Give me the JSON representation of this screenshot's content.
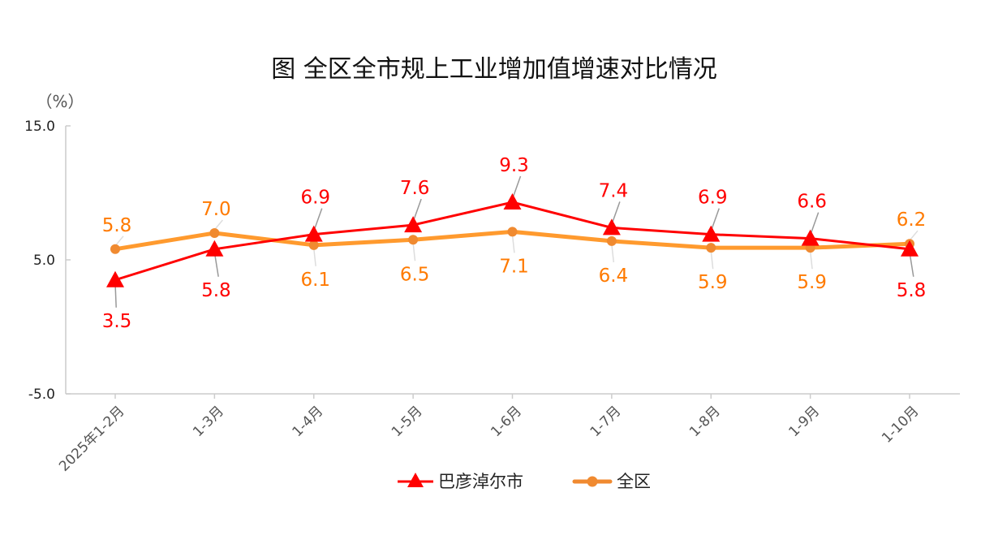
{
  "chart_data": {
    "type": "line",
    "title": "图 全区全市规上工业增加值增速对比情况",
    "ylabel": "（%）",
    "xlabel": "",
    "ylim": [
      -5,
      15
    ],
    "yticks": [
      "15.0",
      "5.0",
      "-5.0"
    ],
    "ytick_values": [
      15,
      5,
      -5
    ],
    "categories": [
      "2025年1-2月",
      "1-3月",
      "1-4月",
      "1-5月",
      "1-6月",
      "1-7月",
      "1-8月",
      "1-9月",
      "1-10月"
    ],
    "legend_position": "bottom",
    "series": [
      {
        "name": "巴彦淖尔市",
        "color": "#ff0000",
        "marker": "triangle",
        "values": [
          3.5,
          5.8,
          6.9,
          7.6,
          9.3,
          7.4,
          6.9,
          6.6,
          5.8
        ],
        "labels": [
          "3.5",
          "5.8",
          "6.9",
          "7.6",
          "9.3",
          "7.4",
          "6.9",
          "6.6",
          "5.8"
        ],
        "label_placement": [
          "below",
          "below",
          "above",
          "above",
          "above",
          "above",
          "above",
          "above",
          "below"
        ]
      },
      {
        "name": "全区",
        "color": "#ff9a2e",
        "label_color": "#ff7a00",
        "marker": "circle",
        "values": [
          5.8,
          7.0,
          6.1,
          6.5,
          7.1,
          6.4,
          5.9,
          5.9,
          6.2
        ],
        "labels": [
          "5.8",
          "7.0",
          "6.1",
          "6.5",
          "7.1",
          "6.4",
          "5.9",
          "5.9",
          "6.2"
        ],
        "label_placement": [
          "above",
          "above",
          "below",
          "below",
          "below",
          "below",
          "below",
          "below",
          "above"
        ]
      }
    ]
  }
}
